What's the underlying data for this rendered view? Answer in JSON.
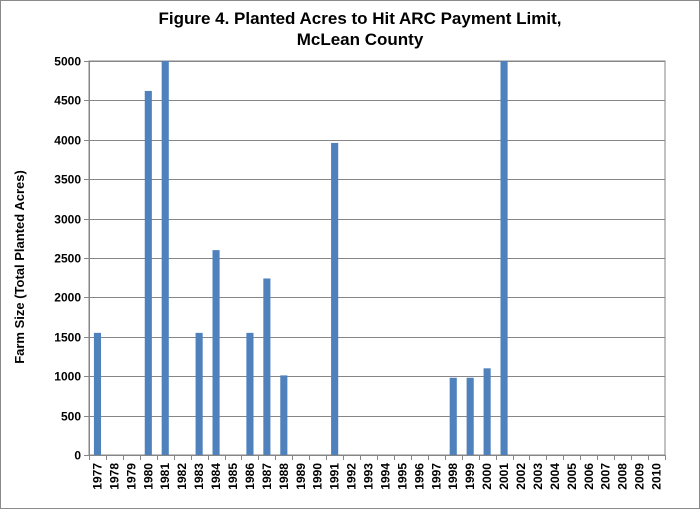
{
  "chart_data": {
    "type": "bar",
    "title_line1": "Figure 4. Planted Acres to Hit ARC Payment Limit,",
    "title_line2": "McLean County",
    "xlabel": "",
    "ylabel": "Farm Size (Total Planted Acres)",
    "ylim": [
      0,
      5000
    ],
    "yticks": [
      0,
      500,
      1000,
      1500,
      2000,
      2500,
      3000,
      3500,
      4000,
      4500,
      5000
    ],
    "grid": true,
    "legend": "none",
    "bar_color": "#4f81bd",
    "categories": [
      "1977",
      "1978",
      "1979",
      "1980",
      "1981",
      "1982",
      "1983",
      "1984",
      "1985",
      "1986",
      "1987",
      "1988",
      "1989",
      "1990",
      "1991",
      "1992",
      "1993",
      "1994",
      "1995",
      "1996",
      "1997",
      "1998",
      "1999",
      "2000",
      "2001",
      "2002",
      "2003",
      "2004",
      "2005",
      "2006",
      "2007",
      "2008",
      "2009",
      "2010"
    ],
    "values": [
      1550,
      0,
      0,
      4620,
      5000,
      0,
      1550,
      2600,
      0,
      1550,
      2240,
      1010,
      0,
      0,
      3960,
      0,
      0,
      0,
      0,
      0,
      0,
      980,
      980,
      1100,
      5000,
      0,
      0,
      0,
      0,
      0,
      0,
      0,
      0,
      0
    ]
  }
}
